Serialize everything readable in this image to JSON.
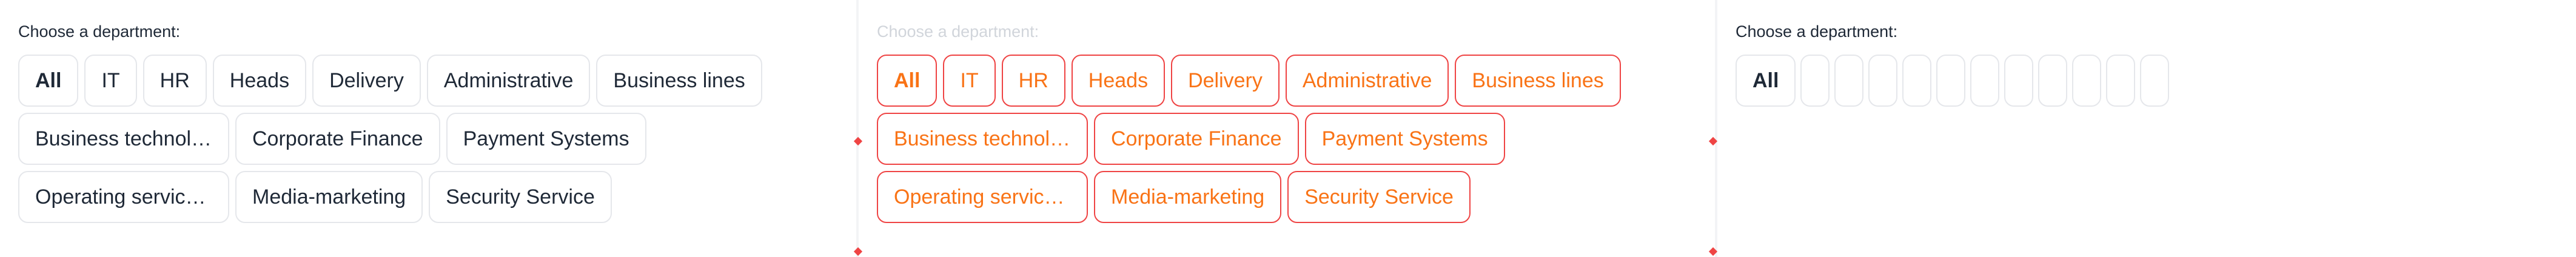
{
  "panels": [
    {
      "heading": "Choose a department:",
      "chips": [
        "All",
        "IT",
        "HR",
        "Heads",
        "Delivery",
        "Administrative",
        "Business lines",
        "Business technolo...",
        "Corporate Finance",
        "Payment Systems",
        "Operating service l...",
        "Media-marketing",
        "Security Service"
      ]
    },
    {
      "heading": "Choose a department:",
      "chips": [
        "All",
        "IT",
        "HR",
        "Heads",
        "Delivery",
        "Administrative",
        "Business lines",
        "Business technolo...",
        "Corporate Finance",
        "Payment Systems",
        "Operating service l...",
        "Media-marketing",
        "Security Service"
      ]
    },
    {
      "heading": "Choose a department:",
      "chips": [
        "All"
      ]
    }
  ],
  "colors": {
    "accent_debug": "#ef4444",
    "text_debug": "#f97316",
    "border": "#e5e7eb"
  }
}
